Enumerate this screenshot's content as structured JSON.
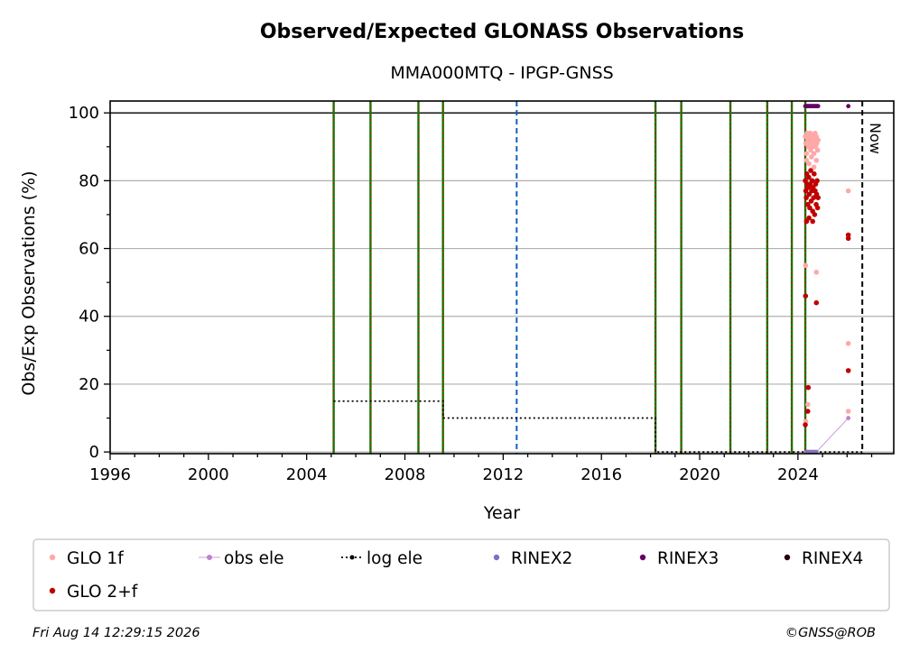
{
  "chart_data": {
    "type": "scatter",
    "title": "Observed/Expected GLONASS Observations",
    "subtitle": "MMA000MTQ - IPGP-GNSS",
    "xlabel": "Year",
    "ylabel": "Obs/Exp Observations (%)",
    "xlim": [
      1996.0,
      2027.9
    ],
    "ylim": [
      -0.5,
      103.5
    ],
    "x_ticks": [
      1996,
      2000,
      2004,
      2008,
      2012,
      2016,
      2020,
      2024
    ],
    "y_ticks": [
      0,
      20,
      40,
      60,
      80,
      100
    ],
    "grid": "y-major",
    "reference_line_y": 100,
    "now_label": "Now",
    "now_x": 2026.62,
    "vertical_events": {
      "green_red_dotted": [
        2005.1,
        2006.6,
        2008.55,
        2009.55,
        2018.2,
        2019.25,
        2021.25,
        2022.75,
        2023.75,
        2024.3
      ],
      "blue_dashed": [
        2012.55
      ]
    },
    "log_ele_steps": [
      {
        "x_start": 2005.1,
        "x_end": 2009.55,
        "y": 15
      },
      {
        "x_start": 2009.55,
        "x_end": 2018.2,
        "y": 10
      },
      {
        "x_start": 2018.2,
        "x_end": 2026.62,
        "y": 0
      }
    ],
    "series": [
      {
        "name": "GLO 1f",
        "color": "#ffa8a8",
        "points": [
          [
            2024.3,
            93
          ],
          [
            2024.32,
            91
          ],
          [
            2024.35,
            88
          ],
          [
            2024.37,
            94
          ],
          [
            2024.4,
            92
          ],
          [
            2024.42,
            90
          ],
          [
            2024.45,
            93
          ],
          [
            2024.47,
            91
          ],
          [
            2024.5,
            94
          ],
          [
            2024.52,
            89
          ],
          [
            2024.55,
            92
          ],
          [
            2024.57,
            90
          ],
          [
            2024.6,
            93
          ],
          [
            2024.62,
            91
          ],
          [
            2024.65,
            88
          ],
          [
            2024.67,
            92
          ],
          [
            2024.7,
            94
          ],
          [
            2024.72,
            90
          ],
          [
            2024.75,
            93
          ],
          [
            2024.77,
            91
          ],
          [
            2024.8,
            89
          ],
          [
            2024.82,
            92
          ],
          [
            2024.35,
            86
          ],
          [
            2024.45,
            85
          ],
          [
            2024.55,
            87
          ],
          [
            2024.65,
            84
          ],
          [
            2024.75,
            86
          ],
          [
            2024.31,
            55
          ],
          [
            2024.4,
            14
          ],
          [
            2024.32,
            9
          ],
          [
            2024.75,
            53
          ],
          [
            2026.05,
            77
          ],
          [
            2026.05,
            32
          ],
          [
            2026.05,
            12
          ]
        ]
      },
      {
        "name": "GLO 2+f",
        "color": "#c00000",
        "points": [
          [
            2024.3,
            80
          ],
          [
            2024.32,
            77
          ],
          [
            2024.34,
            75
          ],
          [
            2024.36,
            82
          ],
          [
            2024.38,
            79
          ],
          [
            2024.4,
            73
          ],
          [
            2024.42,
            78
          ],
          [
            2024.44,
            81
          ],
          [
            2024.46,
            76
          ],
          [
            2024.48,
            72
          ],
          [
            2024.5,
            79
          ],
          [
            2024.52,
            83
          ],
          [
            2024.54,
            74
          ],
          [
            2024.56,
            77
          ],
          [
            2024.58,
            80
          ],
          [
            2024.6,
            71
          ],
          [
            2024.62,
            78
          ],
          [
            2024.64,
            75
          ],
          [
            2024.66,
            82
          ],
          [
            2024.68,
            70
          ],
          [
            2024.7,
            77
          ],
          [
            2024.72,
            79
          ],
          [
            2024.74,
            73
          ],
          [
            2024.76,
            76
          ],
          [
            2024.78,
            80
          ],
          [
            2024.8,
            72
          ],
          [
            2024.82,
            75
          ],
          [
            2024.45,
            69
          ],
          [
            2024.6,
            68
          ],
          [
            2024.35,
            68
          ],
          [
            2024.31,
            46
          ],
          [
            2024.75,
            44
          ],
          [
            2024.42,
            19
          ],
          [
            2024.4,
            12
          ],
          [
            2024.3,
            8
          ],
          [
            2026.05,
            64
          ],
          [
            2026.05,
            63
          ],
          [
            2026.05,
            24
          ]
        ]
      },
      {
        "name": "obs ele",
        "color": "#c080d0",
        "points": [
          [
            2024.35,
            0
          ],
          [
            2024.4,
            0
          ],
          [
            2024.45,
            0
          ],
          [
            2024.5,
            0
          ],
          [
            2024.55,
            0
          ],
          [
            2024.6,
            0
          ],
          [
            2024.65,
            0
          ],
          [
            2024.7,
            0
          ],
          [
            2024.75,
            0
          ],
          [
            2026.05,
            10
          ]
        ]
      },
      {
        "name": "log ele",
        "color": "#000000",
        "points": []
      },
      {
        "name": "RINEX2",
        "color": "#8070c0",
        "points": [
          [
            2024.38,
            0
          ],
          [
            2024.5,
            0
          ],
          [
            2024.62,
            0
          ],
          [
            2024.74,
            0
          ]
        ]
      },
      {
        "name": "RINEX3",
        "color": "#660066",
        "points": [
          [
            2024.3,
            102
          ],
          [
            2024.34,
            102
          ],
          [
            2024.38,
            102
          ],
          [
            2024.42,
            102
          ],
          [
            2024.46,
            102
          ],
          [
            2024.5,
            102
          ],
          [
            2024.54,
            102
          ],
          [
            2024.58,
            102
          ],
          [
            2024.62,
            102
          ],
          [
            2024.66,
            102
          ],
          [
            2024.7,
            102
          ],
          [
            2024.74,
            102
          ],
          [
            2024.78,
            102
          ],
          [
            2024.82,
            102
          ],
          [
            2026.05,
            102
          ]
        ]
      },
      {
        "name": "RINEX4",
        "color": "#220011",
        "points": []
      }
    ],
    "legend": {
      "placement": "bottom",
      "entries": [
        "GLO 1f",
        "obs ele",
        "log ele",
        "RINEX2",
        "RINEX3",
        "RINEX4",
        "GLO 2+f"
      ]
    }
  },
  "footer": {
    "timestamp": "Fri Aug 14 12:29:15 2026",
    "credit": "©GNSS@ROB"
  }
}
